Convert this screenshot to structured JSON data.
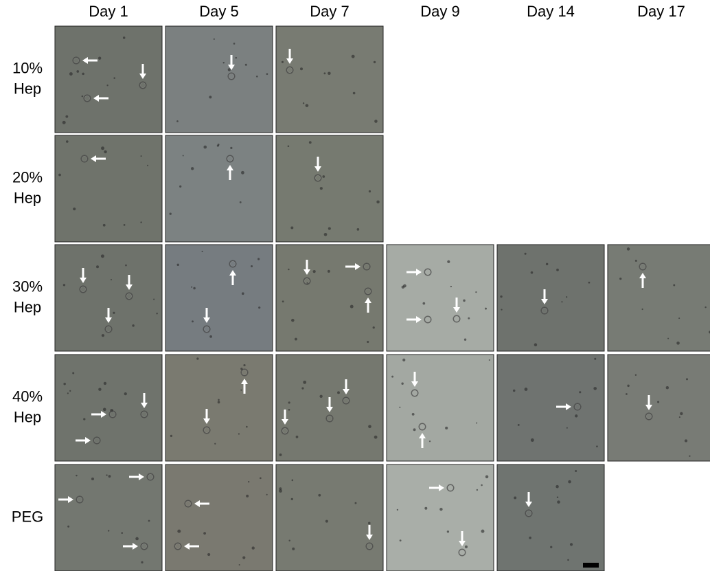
{
  "columns": [
    "Day 1",
    "Day 5",
    "Day 7",
    "Day 9",
    "Day 14",
    "Day 17"
  ],
  "rows": [
    {
      "label": [
        "10%",
        "Hep"
      ]
    },
    {
      "label": [
        "20%",
        "Hep"
      ]
    },
    {
      "label": [
        "30%",
        "Hep"
      ]
    },
    {
      "label": [
        "40%",
        "Hep"
      ]
    },
    {
      "label": [
        "PEG"
      ]
    }
  ]
}
